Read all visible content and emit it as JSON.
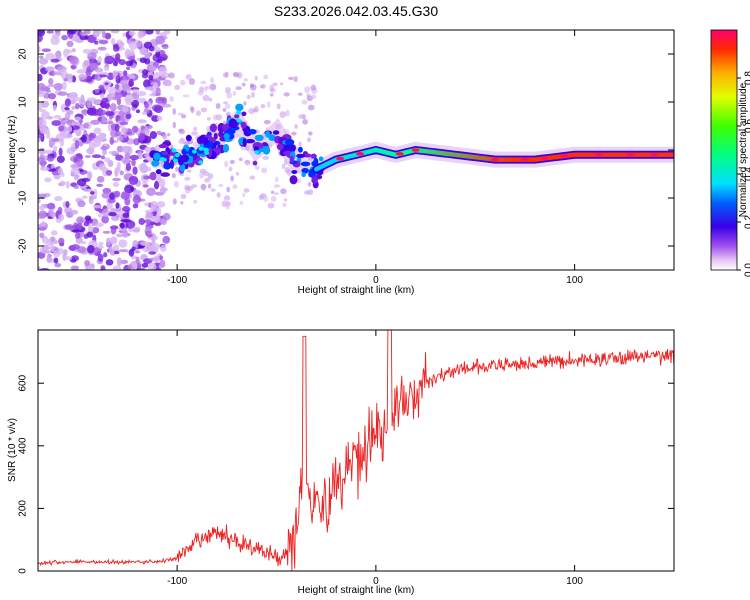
{
  "title": "S233.2026.042.03.45.G30",
  "chart_data": [
    {
      "type": "heatmap",
      "xlabel": "Height of straight line (km)",
      "ylabel": "Frequency (Hz)",
      "xlim": [
        -170,
        150
      ],
      "ylim": [
        -25,
        25
      ],
      "xticks": [
        -100,
        0,
        100
      ],
      "yticks": [
        -20,
        -10,
        0,
        10,
        20
      ],
      "colorbar": {
        "label": "Normalized spectral amplitude",
        "range": [
          0,
          1
        ],
        "ticks": [
          0.0,
          0.2,
          0.4,
          0.6,
          0.8
        ]
      },
      "ridge_line": [
        {
          "x": -110,
          "y": -2
        },
        {
          "x": -90,
          "y": -1
        },
        {
          "x": -80,
          "y": 2
        },
        {
          "x": -70,
          "y": 6
        },
        {
          "x": -60,
          "y": 0
        },
        {
          "x": -50,
          "y": 4
        },
        {
          "x": -40,
          "y": -3
        },
        {
          "x": -30,
          "y": -4
        },
        {
          "x": -20,
          "y": -2
        },
        {
          "x": -10,
          "y": -1
        },
        {
          "x": 0,
          "y": 0
        },
        {
          "x": 10,
          "y": -1
        },
        {
          "x": 20,
          "y": 0
        },
        {
          "x": 40,
          "y": -1
        },
        {
          "x": 60,
          "y": -2
        },
        {
          "x": 80,
          "y": -2
        },
        {
          "x": 100,
          "y": -1
        },
        {
          "x": 120,
          "y": -1
        },
        {
          "x": 150,
          "y": -1
        }
      ]
    },
    {
      "type": "line",
      "xlabel": "Height of straight line (km)",
      "ylabel": "SNR (10 * v/v)",
      "xlim": [
        -170,
        150
      ],
      "ylim": [
        0,
        770
      ],
      "xticks": [
        -100,
        0,
        100
      ],
      "yticks": [
        0,
        200,
        400,
        600
      ],
      "series": [
        {
          "name": "SNR",
          "color": "#ee2222",
          "points": [
            [
              -170,
              25
            ],
            [
              -150,
              30
            ],
            [
              -130,
              28
            ],
            [
              -110,
              30
            ],
            [
              -100,
              40
            ],
            [
              -95,
              60
            ],
            [
              -90,
              95
            ],
            [
              -85,
              110
            ],
            [
              -80,
              120
            ],
            [
              -75,
              110
            ],
            [
              -70,
              95
            ],
            [
              -65,
              85
            ],
            [
              -60,
              70
            ],
            [
              -55,
              55
            ],
            [
              -50,
              45
            ],
            [
              -45,
              55
            ],
            [
              -42,
              90
            ],
            [
              -39,
              200
            ],
            [
              -37,
              300
            ],
            [
              -35,
              330
            ],
            [
              -33,
              260
            ],
            [
              -30,
              230
            ],
            [
              -27,
              200
            ],
            [
              -24,
              210
            ],
            [
              -21,
              260
            ],
            [
              -18,
              300
            ],
            [
              -15,
              330
            ],
            [
              -12,
              370
            ],
            [
              -9,
              360
            ],
            [
              -6,
              380
            ],
            [
              -3,
              430
            ],
            [
              0,
              480
            ],
            [
              3,
              420
            ],
            [
              6,
              460
            ],
            [
              9,
              520
            ],
            [
              12,
              520
            ],
            [
              15,
              540
            ],
            [
              18,
              560
            ],
            [
              21,
              570
            ],
            [
              25,
              600
            ],
            [
              30,
              620
            ],
            [
              40,
              640
            ],
            [
              50,
              650
            ],
            [
              60,
              655
            ],
            [
              70,
              660
            ],
            [
              80,
              665
            ],
            [
              90,
              670
            ],
            [
              100,
              672
            ],
            [
              110,
              676
            ],
            [
              120,
              680
            ],
            [
              130,
              685
            ],
            [
              140,
              688
            ],
            [
              150,
              690
            ]
          ]
        }
      ]
    }
  ]
}
